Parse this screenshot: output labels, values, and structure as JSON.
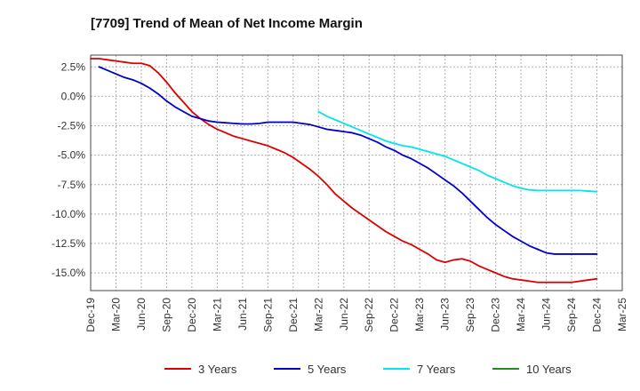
{
  "chart_data": {
    "type": "line",
    "title": "[7709]  Trend of Mean of Net Income Margin",
    "xlabel": "",
    "ylabel": "",
    "ylim": [
      -16.5,
      3.5
    ],
    "y_ticks": [
      2.5,
      0.0,
      -2.5,
      -5.0,
      -7.5,
      -10.0,
      -12.5,
      -15.0
    ],
    "y_tick_labels": [
      "2.5%",
      "0.0%",
      "-2.5%",
      "-5.0%",
      "-7.5%",
      "-10.0%",
      "-12.5%",
      "-15.0%"
    ],
    "x_tick_labels": [
      "Dec-19",
      "Mar-20",
      "Jun-20",
      "Sep-20",
      "Dec-20",
      "Mar-21",
      "Jun-21",
      "Sep-21",
      "Dec-21",
      "Mar-22",
      "Jun-22",
      "Sep-22",
      "Dec-22",
      "Mar-23",
      "Jun-23",
      "Sep-23",
      "Dec-23",
      "Mar-24",
      "Jun-24",
      "Sep-24",
      "Dec-24",
      "Mar-25"
    ],
    "grid": true,
    "legend_position": "bottom",
    "series": [
      {
        "name": "3 Years",
        "color": "#dd0000",
        "points": [
          [
            "Dec-19",
            3.2
          ],
          [
            "Jan-20",
            3.2
          ],
          [
            "Feb-20",
            3.1
          ],
          [
            "Mar-20",
            3.0
          ],
          [
            "Apr-20",
            2.9
          ],
          [
            "May-20",
            2.8
          ],
          [
            "Jun-20",
            2.8
          ],
          [
            "Jul-20",
            2.6
          ],
          [
            "Aug-20",
            2.0
          ],
          [
            "Sep-20",
            1.2
          ],
          [
            "Oct-20",
            0.3
          ],
          [
            "Nov-20",
            -0.5
          ],
          [
            "Dec-20",
            -1.3
          ],
          [
            "Jan-21",
            -1.9
          ],
          [
            "Feb-21",
            -2.4
          ],
          [
            "Mar-21",
            -2.8
          ],
          [
            "Apr-21",
            -3.1
          ],
          [
            "May-21",
            -3.4
          ],
          [
            "Jun-21",
            -3.6
          ],
          [
            "Jul-21",
            -3.8
          ],
          [
            "Aug-21",
            -4.0
          ],
          [
            "Sep-21",
            -4.2
          ],
          [
            "Oct-21",
            -4.5
          ],
          [
            "Nov-21",
            -4.8
          ],
          [
            "Dec-21",
            -5.2
          ],
          [
            "Jan-22",
            -5.7
          ],
          [
            "Feb-22",
            -6.2
          ],
          [
            "Mar-22",
            -6.8
          ],
          [
            "Apr-22",
            -7.5
          ],
          [
            "May-22",
            -8.3
          ],
          [
            "Jun-22",
            -8.9
          ],
          [
            "Jul-22",
            -9.5
          ],
          [
            "Aug-22",
            -10.0
          ],
          [
            "Sep-22",
            -10.5
          ],
          [
            "Oct-22",
            -11.0
          ],
          [
            "Nov-22",
            -11.5
          ],
          [
            "Dec-22",
            -11.9
          ],
          [
            "Jan-23",
            -12.3
          ],
          [
            "Feb-23",
            -12.6
          ],
          [
            "Mar-23",
            -13.0
          ],
          [
            "Apr-23",
            -13.4
          ],
          [
            "May-23",
            -13.9
          ],
          [
            "Jun-23",
            -14.1
          ],
          [
            "Jul-23",
            -13.9
          ],
          [
            "Aug-23",
            -13.8
          ],
          [
            "Sep-23",
            -14.0
          ],
          [
            "Oct-23",
            -14.4
          ],
          [
            "Nov-23",
            -14.7
          ],
          [
            "Dec-23",
            -15.0
          ],
          [
            "Jan-24",
            -15.3
          ],
          [
            "Feb-24",
            -15.5
          ],
          [
            "Mar-24",
            -15.6
          ],
          [
            "Apr-24",
            -15.7
          ],
          [
            "May-24",
            -15.8
          ],
          [
            "Jun-24",
            -15.8
          ],
          [
            "Jul-24",
            -15.8
          ],
          [
            "Aug-24",
            -15.8
          ],
          [
            "Sep-24",
            -15.8
          ],
          [
            "Oct-24",
            -15.7
          ],
          [
            "Nov-24",
            -15.6
          ],
          [
            "Dec-24",
            -15.5
          ]
        ]
      },
      {
        "name": "5 Years",
        "color": "#0000cc",
        "points": [
          [
            "Jan-20",
            2.5
          ],
          [
            "Feb-20",
            2.2
          ],
          [
            "Mar-20",
            1.9
          ],
          [
            "Apr-20",
            1.6
          ],
          [
            "May-20",
            1.4
          ],
          [
            "Jun-20",
            1.1
          ],
          [
            "Jul-20",
            0.7
          ],
          [
            "Aug-20",
            0.2
          ],
          [
            "Sep-20",
            -0.4
          ],
          [
            "Oct-20",
            -0.9
          ],
          [
            "Nov-20",
            -1.3
          ],
          [
            "Dec-20",
            -1.7
          ],
          [
            "Jan-21",
            -1.9
          ],
          [
            "Feb-21",
            -2.1
          ],
          [
            "Mar-21",
            -2.2
          ],
          [
            "Apr-21",
            -2.25
          ],
          [
            "May-21",
            -2.3
          ],
          [
            "Jun-21",
            -2.35
          ],
          [
            "Jul-21",
            -2.35
          ],
          [
            "Aug-21",
            -2.3
          ],
          [
            "Sep-21",
            -2.2
          ],
          [
            "Oct-21",
            -2.2
          ],
          [
            "Nov-21",
            -2.2
          ],
          [
            "Dec-21",
            -2.2
          ],
          [
            "Jan-22",
            -2.3
          ],
          [
            "Feb-22",
            -2.4
          ],
          [
            "Mar-22",
            -2.6
          ],
          [
            "Apr-22",
            -2.8
          ],
          [
            "May-22",
            -2.9
          ],
          [
            "Jun-22",
            -3.0
          ],
          [
            "Jul-22",
            -3.1
          ],
          [
            "Aug-22",
            -3.3
          ],
          [
            "Sep-22",
            -3.6
          ],
          [
            "Oct-22",
            -3.9
          ],
          [
            "Nov-22",
            -4.3
          ],
          [
            "Dec-22",
            -4.6
          ],
          [
            "Jan-23",
            -5.0
          ],
          [
            "Feb-23",
            -5.3
          ],
          [
            "Mar-23",
            -5.7
          ],
          [
            "Apr-23",
            -6.1
          ],
          [
            "May-23",
            -6.6
          ],
          [
            "Jun-23",
            -7.1
          ],
          [
            "Jul-23",
            -7.6
          ],
          [
            "Aug-23",
            -8.2
          ],
          [
            "Sep-23",
            -8.9
          ],
          [
            "Oct-23",
            -9.6
          ],
          [
            "Nov-23",
            -10.3
          ],
          [
            "Dec-23",
            -10.9
          ],
          [
            "Jan-24",
            -11.4
          ],
          [
            "Feb-24",
            -11.9
          ],
          [
            "Mar-24",
            -12.3
          ],
          [
            "Apr-24",
            -12.7
          ],
          [
            "May-24",
            -13.0
          ],
          [
            "Jun-24",
            -13.3
          ],
          [
            "Jul-24",
            -13.4
          ],
          [
            "Aug-24",
            -13.4
          ],
          [
            "Sep-24",
            -13.4
          ],
          [
            "Oct-24",
            -13.4
          ],
          [
            "Nov-24",
            -13.4
          ],
          [
            "Dec-24",
            -13.4
          ]
        ]
      },
      {
        "name": "7 Years",
        "color": "#00e5ee",
        "points": [
          [
            "Mar-22",
            -1.3
          ],
          [
            "Apr-22",
            -1.7
          ],
          [
            "May-22",
            -2.0
          ],
          [
            "Jun-22",
            -2.3
          ],
          [
            "Jul-22",
            -2.6
          ],
          [
            "Aug-22",
            -2.9
          ],
          [
            "Sep-22",
            -3.2
          ],
          [
            "Oct-22",
            -3.5
          ],
          [
            "Nov-22",
            -3.8
          ],
          [
            "Dec-22",
            -4.0
          ],
          [
            "Jan-23",
            -4.2
          ],
          [
            "Feb-23",
            -4.3
          ],
          [
            "Mar-23",
            -4.5
          ],
          [
            "Apr-23",
            -4.7
          ],
          [
            "May-23",
            -4.9
          ],
          [
            "Jun-23",
            -5.1
          ],
          [
            "Jul-23",
            -5.4
          ],
          [
            "Aug-23",
            -5.7
          ],
          [
            "Sep-23",
            -6.0
          ],
          [
            "Oct-23",
            -6.3
          ],
          [
            "Nov-23",
            -6.7
          ],
          [
            "Dec-23",
            -7.0
          ],
          [
            "Jan-24",
            -7.3
          ],
          [
            "Feb-24",
            -7.6
          ],
          [
            "Mar-24",
            -7.8
          ],
          [
            "Apr-24",
            -7.95
          ],
          [
            "May-24",
            -8.0
          ],
          [
            "Jun-24",
            -8.0
          ],
          [
            "Jul-24",
            -8.0
          ],
          [
            "Aug-24",
            -8.0
          ],
          [
            "Sep-24",
            -8.0
          ],
          [
            "Oct-24",
            -8.0
          ],
          [
            "Nov-24",
            -8.05
          ],
          [
            "Dec-24",
            -8.1
          ]
        ]
      },
      {
        "name": "10 Years",
        "color": "#228b22",
        "points": []
      }
    ]
  }
}
